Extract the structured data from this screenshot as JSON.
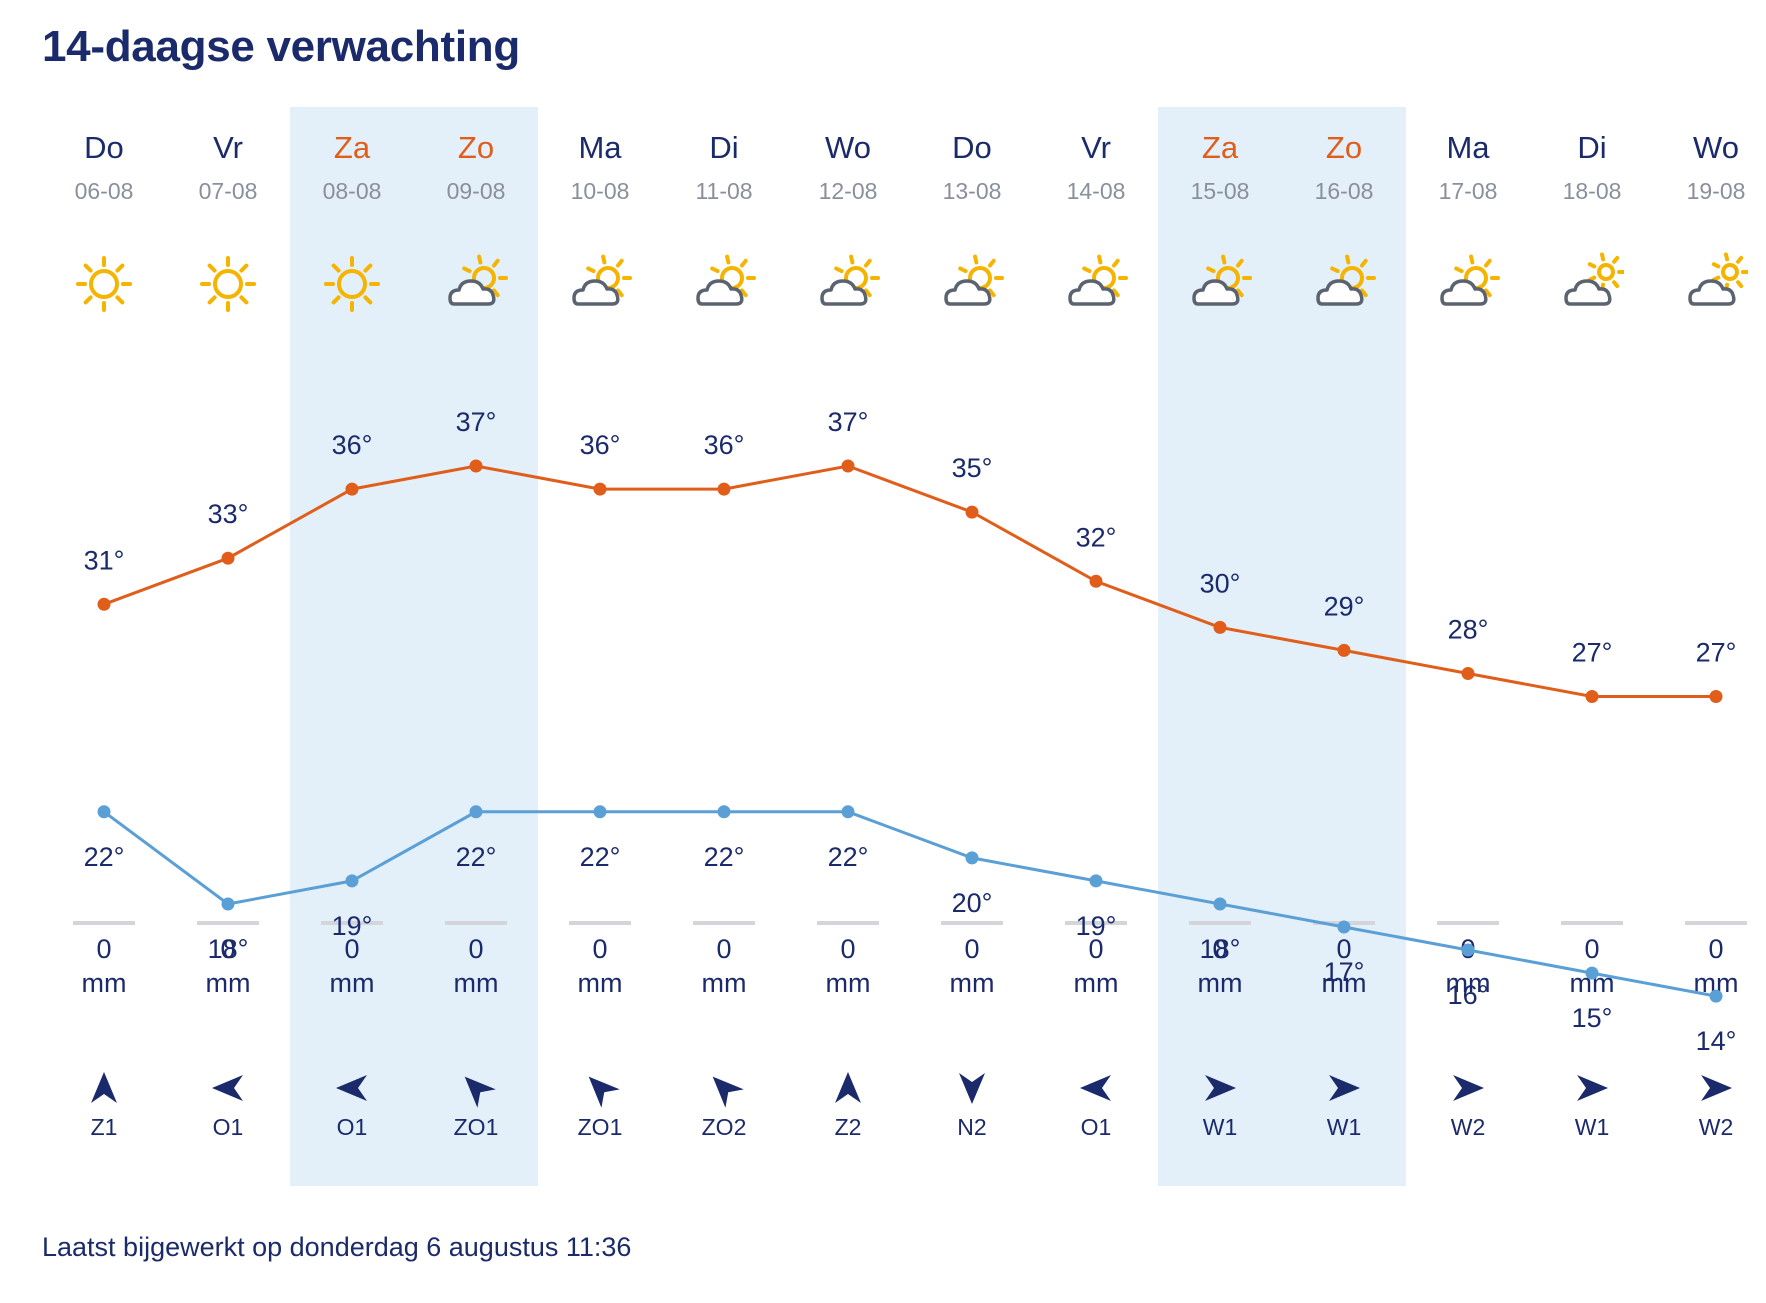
{
  "header": {
    "title": "14-daagse verwachting"
  },
  "colors": {
    "high_line": "#e05d1a",
    "low_line": "#5a9fd6",
    "weekend_bg": "#e3eff9",
    "text": "#1b2a6b",
    "date_text": "#8a8f9c",
    "sun": "#f5b400"
  },
  "days": [
    {
      "name": "Do",
      "date": "06-08",
      "weekend": false,
      "icon": "sun-icon",
      "high": "31°",
      "low": "22°",
      "rain": "0",
      "rain_unit": "mm",
      "wind_dir_deg": 0,
      "wind": "Z1"
    },
    {
      "name": "Vr",
      "date": "07-08",
      "weekend": false,
      "icon": "sun-icon",
      "high": "33°",
      "low": "18°",
      "rain": "0",
      "rain_unit": "mm",
      "wind_dir_deg": 270,
      "wind": "O1"
    },
    {
      "name": "Za",
      "date": "08-08",
      "weekend": true,
      "icon": "sun-icon",
      "high": "36°",
      "low": "19°",
      "rain": "0",
      "rain_unit": "mm",
      "wind_dir_deg": 270,
      "wind": "O1"
    },
    {
      "name": "Zo",
      "date": "09-08",
      "weekend": true,
      "icon": "partly-cloudy-icon",
      "high": "37°",
      "low": "22°",
      "rain": "0",
      "rain_unit": "mm",
      "wind_dir_deg": 315,
      "wind": "ZO1"
    },
    {
      "name": "Ma",
      "date": "10-08",
      "weekend": false,
      "icon": "partly-cloudy-icon",
      "high": "36°",
      "low": "22°",
      "rain": "0",
      "rain_unit": "mm",
      "wind_dir_deg": 315,
      "wind": "ZO1"
    },
    {
      "name": "Di",
      "date": "11-08",
      "weekend": false,
      "icon": "partly-cloudy-icon",
      "high": "36°",
      "low": "22°",
      "rain": "0",
      "rain_unit": "mm",
      "wind_dir_deg": 315,
      "wind": "ZO2"
    },
    {
      "name": "Wo",
      "date": "12-08",
      "weekend": false,
      "icon": "partly-cloudy-icon",
      "high": "37°",
      "low": "22°",
      "rain": "0",
      "rain_unit": "mm",
      "wind_dir_deg": 0,
      "wind": "Z2"
    },
    {
      "name": "Do",
      "date": "13-08",
      "weekend": false,
      "icon": "partly-cloudy-icon",
      "high": "35°",
      "low": "20°",
      "rain": "0",
      "rain_unit": "mm",
      "wind_dir_deg": 180,
      "wind": "N2"
    },
    {
      "name": "Vr",
      "date": "14-08",
      "weekend": false,
      "icon": "partly-cloudy-icon",
      "high": "32°",
      "low": "19°",
      "rain": "0",
      "rain_unit": "mm",
      "wind_dir_deg": 270,
      "wind": "O1"
    },
    {
      "name": "Za",
      "date": "15-08",
      "weekend": true,
      "icon": "partly-cloudy-icon",
      "high": "30°",
      "low": "18°",
      "rain": "0",
      "rain_unit": "mm",
      "wind_dir_deg": 90,
      "wind": "W1"
    },
    {
      "name": "Zo",
      "date": "16-08",
      "weekend": true,
      "icon": "partly-cloudy-icon",
      "high": "29°",
      "low": "17°",
      "rain": "0",
      "rain_unit": "mm",
      "wind_dir_deg": 90,
      "wind": "W1"
    },
    {
      "name": "Ma",
      "date": "17-08",
      "weekend": false,
      "icon": "partly-cloudy-icon",
      "high": "28°",
      "low": "16°",
      "rain": "0",
      "rain_unit": "mm",
      "wind_dir_deg": 90,
      "wind": "W2"
    },
    {
      "name": "Di",
      "date": "18-08",
      "weekend": false,
      "icon": "cloudy-sun-icon",
      "high": "27°",
      "low": "15°",
      "rain": "0",
      "rain_unit": "mm",
      "wind_dir_deg": 90,
      "wind": "W1"
    },
    {
      "name": "Wo",
      "date": "19-08",
      "weekend": false,
      "icon": "cloudy-sun-icon",
      "high": "27°",
      "low": "14°",
      "rain": "0",
      "rain_unit": "mm",
      "wind_dir_deg": 90,
      "wind": "W2"
    }
  ],
  "chart_data": {
    "type": "line",
    "categories": [
      "06-08",
      "07-08",
      "08-08",
      "09-08",
      "10-08",
      "11-08",
      "12-08",
      "13-08",
      "14-08",
      "15-08",
      "16-08",
      "17-08",
      "18-08",
      "19-08"
    ],
    "series": [
      {
        "values": [
          31,
          33,
          36,
          37,
          36,
          36,
          37,
          35,
          32,
          30,
          29,
          28,
          27,
          27
        ]
      },
      {
        "values": [
          22,
          18,
          19,
          22,
          22,
          22,
          22,
          20,
          19,
          18,
          17,
          16,
          15,
          14
        ]
      }
    ],
    "title": "",
    "xlabel": "",
    "ylabel": "",
    "grid": false
  },
  "footer": {
    "updated": "Laatst bijgewerkt op donderdag 6 augustus 11:36"
  }
}
